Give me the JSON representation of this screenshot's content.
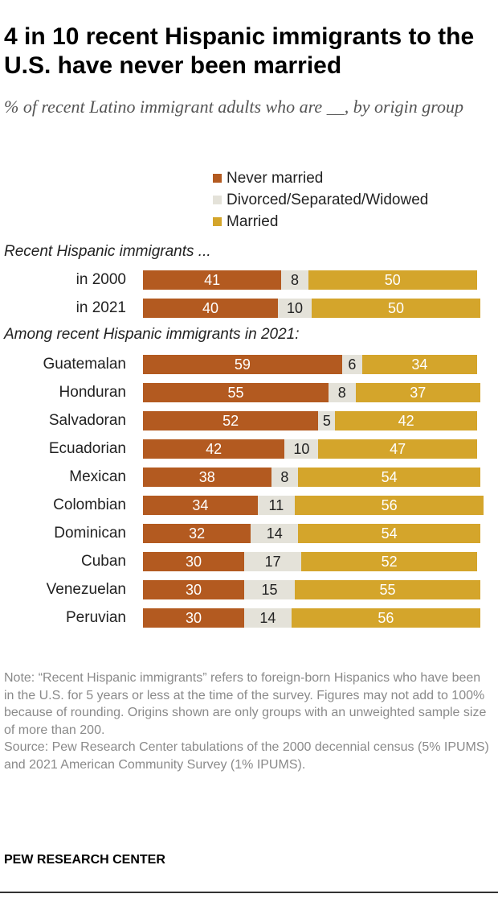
{
  "title": "4 in 10 recent Hispanic immigrants to the U.S. have never been married",
  "subtitle": "% of recent Latino immigrant adults who are __, by origin group",
  "legend": {
    "never": "Never married",
    "div": "Divorced/Separated/Widowed",
    "married": "Married"
  },
  "colors": {
    "never": "#b35a20",
    "div": "#e4e2d9",
    "married": "#d4a52b"
  },
  "chart_data": {
    "type": "bar",
    "orientation": "horizontal-stacked",
    "title": "4 in 10 recent Hispanic immigrants to the U.S. have never been married",
    "series_names": [
      "Never married",
      "Divorced/Separated/Widowed",
      "Married"
    ],
    "sections": [
      {
        "label": "Recent Hispanic immigrants ...",
        "rows": [
          {
            "label": "in 2000",
            "values": [
              41,
              8,
              50
            ]
          },
          {
            "label": "in 2021",
            "values": [
              40,
              10,
              50
            ]
          }
        ]
      },
      {
        "label": "Among recent Hispanic immigrants in 2021:",
        "rows": [
          {
            "label": "Guatemalan",
            "values": [
              59,
              6,
              34
            ]
          },
          {
            "label": "Honduran",
            "values": [
              55,
              8,
              37
            ]
          },
          {
            "label": "Salvadoran",
            "values": [
              52,
              5,
              42
            ]
          },
          {
            "label": "Ecuadorian",
            "values": [
              42,
              10,
              47
            ]
          },
          {
            "label": "Mexican",
            "values": [
              38,
              8,
              54
            ]
          },
          {
            "label": "Colombian",
            "values": [
              34,
              11,
              56
            ]
          },
          {
            "label": "Dominican",
            "values": [
              32,
              14,
              54
            ]
          },
          {
            "label": "Cuban",
            "values": [
              30,
              17,
              52
            ]
          },
          {
            "label": "Venezuelan",
            "values": [
              30,
              15,
              55
            ]
          },
          {
            "label": "Peruvian",
            "values": [
              30,
              14,
              56
            ]
          }
        ]
      }
    ]
  },
  "note": "Note: “Recent Hispanic immigrants” refers to foreign-born Hispanics who have been in the U.S. for 5 years or less at the time of the survey. Figures may not add to 100% because of rounding. Origins shown are only groups with an unweighted sample size of more than 200.",
  "source": "Source: Pew Research Center tabulations of the 2000 decennial census (5% IPUMS) and 2021 American Community Survey (1% IPUMS).",
  "footer": "PEW RESEARCH CENTER"
}
